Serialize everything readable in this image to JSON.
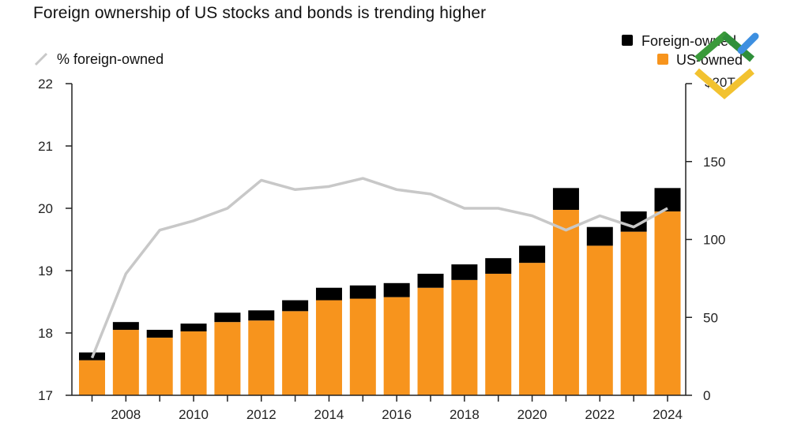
{
  "title": "Foreign ownership of US stocks and bonds is trending higher",
  "legend": {
    "line_label": "% foreign-owned",
    "foreign_label": "Foreign-owned",
    "us_label": "US-owned",
    "unit_label": "$20T"
  },
  "colors": {
    "foreign": "#000000",
    "us": "#f7941d",
    "line": "#c8c8c8",
    "axis": "#222222"
  },
  "chart_data": {
    "type": "bar",
    "title": "Foreign ownership of US stocks and bonds is trending higher",
    "stacked": true,
    "categories": [
      2007,
      2008,
      2009,
      2010,
      2011,
      2012,
      2013,
      2014,
      2015,
      2016,
      2017,
      2018,
      2019,
      2020,
      2021,
      2022,
      2023,
      2024
    ],
    "x_tick_labels": [
      "2008",
      "2010",
      "2012",
      "2014",
      "2016",
      "2018",
      "2020",
      "2022",
      "2024"
    ],
    "series": [
      {
        "name": "US-owned",
        "axis": "right",
        "values": [
          22.5,
          42,
          37,
          41,
          47,
          48,
          54,
          61,
          62,
          63,
          69,
          74,
          78,
          85,
          119,
          96,
          105,
          118
        ]
      },
      {
        "name": "Foreign-owned",
        "axis": "right",
        "values": [
          5,
          5,
          5,
          5,
          6,
          6.5,
          7,
          8,
          8.5,
          9,
          9,
          10,
          10,
          11,
          14,
          12,
          13,
          15
        ]
      },
      {
        "name": "% foreign-owned",
        "axis": "left",
        "type": "line",
        "values": [
          17.6,
          18.95,
          19.65,
          19.8,
          20.0,
          20.45,
          20.3,
          20.35,
          20.48,
          20.3,
          20.23,
          20.0,
          20.0,
          19.88,
          19.65,
          19.88,
          19.7,
          20.0
        ]
      }
    ],
    "left_axis": {
      "ylim": [
        17,
        22
      ],
      "ticks": [
        17,
        18,
        19,
        20,
        21,
        22
      ]
    },
    "right_axis": {
      "ylim": [
        0,
        200
      ],
      "ticks": [
        0,
        50,
        100,
        150
      ],
      "top_label": "$20T"
    },
    "legend_position": "top"
  }
}
